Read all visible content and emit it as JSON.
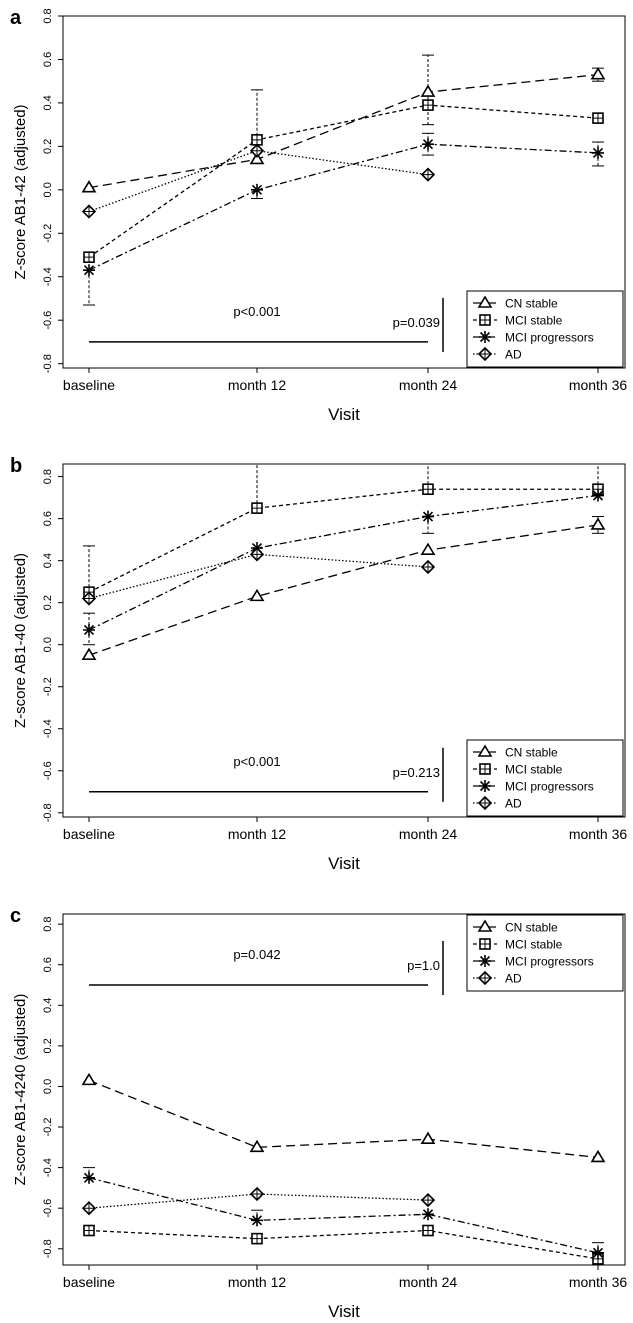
{
  "chart_data": [
    {
      "panel_label": "a",
      "type": "line",
      "ylabel": "Z-score AB1-42 (adjusted)",
      "xlabel": "Visit",
      "categories": [
        "baseline",
        "month 12",
        "month 24",
        "month 36"
      ],
      "yticks": [
        "-0.8",
        "-0.6",
        "-0.4",
        "-0.2",
        "0.0",
        "0.2",
        "0.4",
        "0.6",
        "0.8"
      ],
      "ylim": [
        -0.82,
        0.8
      ],
      "series": [
        {
          "name": "CN stable",
          "style": "long-dash",
          "marker": "triangle",
          "values": [
            0.01,
            0.14,
            0.45,
            0.53
          ],
          "err_lo": [
            null,
            null,
            0.3,
            0.5
          ],
          "err_hi": [
            null,
            null,
            0.62,
            0.56
          ]
        },
        {
          "name": "MCI stable",
          "style": "short-dash",
          "marker": "square",
          "values": [
            -0.31,
            0.23,
            0.39,
            0.33
          ],
          "err_lo": [
            null,
            null,
            null,
            null
          ],
          "err_hi": [
            null,
            null,
            null,
            null
          ]
        },
        {
          "name": "MCI progressors",
          "style": "dash-dot",
          "marker": "star",
          "values": [
            -0.37,
            0.0,
            0.21,
            0.17
          ],
          "err_lo": [
            -0.53,
            -0.04,
            0.16,
            0.11
          ],
          "err_hi": [
            null,
            null,
            0.26,
            0.22
          ]
        },
        {
          "name": "AD",
          "style": "dotted",
          "marker": "diamond",
          "values": [
            -0.1,
            0.18,
            0.07,
            null
          ],
          "err_lo": [
            null,
            null,
            null,
            null
          ],
          "err_hi": [
            null,
            0.46,
            null,
            null
          ]
        }
      ],
      "annotations": {
        "long_text": "p<0.001",
        "short_text": "p=0.039",
        "y": -0.7
      },
      "legend": "bottom-right"
    },
    {
      "panel_label": "b",
      "type": "line",
      "ylabel": "Z-score AB1-40 (adjusted)",
      "xlabel": "Visit",
      "categories": [
        "baseline",
        "month 12",
        "month 24",
        "month 36"
      ],
      "yticks": [
        "-0.8",
        "-0.6",
        "-0.4",
        "-0.2",
        "0.0",
        "0.2",
        "0.4",
        "0.6",
        "0.8"
      ],
      "ylim": [
        -0.82,
        0.86
      ],
      "series": [
        {
          "name": "CN stable",
          "style": "long-dash",
          "marker": "triangle",
          "values": [
            -0.05,
            0.23,
            0.45,
            0.57
          ],
          "err_lo": [
            null,
            null,
            null,
            0.53
          ],
          "err_hi": [
            null,
            null,
            null,
            0.61
          ]
        },
        {
          "name": "MCI stable",
          "style": "short-dash",
          "marker": "square",
          "values": [
            0.25,
            0.65,
            0.74,
            0.74
          ],
          "err_lo": [
            null,
            null,
            null,
            null
          ],
          "err_hi": [
            0.47,
            0.86,
            0.86,
            0.86
          ]
        },
        {
          "name": "MCI progressors",
          "style": "dash-dot",
          "marker": "star",
          "values": [
            0.07,
            0.46,
            0.61,
            0.71
          ],
          "err_lo": [
            0.0,
            null,
            0.53,
            null
          ],
          "err_hi": [
            0.15,
            null,
            null,
            null
          ]
        },
        {
          "name": "AD",
          "style": "dotted",
          "marker": "diamond",
          "values": [
            0.22,
            0.43,
            0.37,
            null
          ],
          "err_lo": [
            null,
            null,
            null,
            null
          ],
          "err_hi": [
            null,
            null,
            null,
            null
          ]
        }
      ],
      "annotations": {
        "long_text": "p<0.001",
        "short_text": "p=0.213",
        "y": -0.7
      },
      "legend": "bottom-right"
    },
    {
      "panel_label": "c",
      "type": "line",
      "ylabel": "Z-score AB1-4240 (adjusted)",
      "xlabel": "Visit",
      "categories": [
        "baseline",
        "month 12",
        "month 24",
        "month 36"
      ],
      "yticks": [
        "-0.8",
        "-0.6",
        "-0.4",
        "-0.2",
        "0.0",
        "0.2",
        "0.4",
        "0.6",
        "0.8"
      ],
      "ylim": [
        -0.88,
        0.85
      ],
      "series": [
        {
          "name": "CN stable",
          "style": "long-dash",
          "marker": "triangle",
          "values": [
            0.03,
            -0.3,
            -0.26,
            -0.35
          ],
          "err_lo": [
            null,
            null,
            null,
            null
          ],
          "err_hi": [
            null,
            null,
            null,
            null
          ]
        },
        {
          "name": "MCI stable",
          "style": "short-dash",
          "marker": "square",
          "values": [
            -0.71,
            -0.75,
            -0.71,
            -0.85
          ],
          "err_lo": [
            null,
            null,
            null,
            null
          ],
          "err_hi": [
            null,
            null,
            null,
            null
          ]
        },
        {
          "name": "MCI progressors",
          "style": "dash-dot",
          "marker": "star",
          "values": [
            -0.45,
            -0.66,
            -0.63,
            -0.82
          ],
          "err_lo": [
            null,
            null,
            null,
            null
          ],
          "err_hi": [
            -0.4,
            -0.61,
            null,
            -0.77
          ]
        },
        {
          "name": "AD",
          "style": "dotted",
          "marker": "diamond",
          "values": [
            -0.6,
            -0.53,
            -0.56,
            null
          ],
          "err_lo": [
            null,
            null,
            null,
            null
          ],
          "err_hi": [
            null,
            null,
            null,
            null
          ]
        }
      ],
      "annotations": {
        "long_text": "p=0.042",
        "short_text": "p=1.0",
        "y": 0.5
      },
      "legend": "top-right"
    }
  ]
}
